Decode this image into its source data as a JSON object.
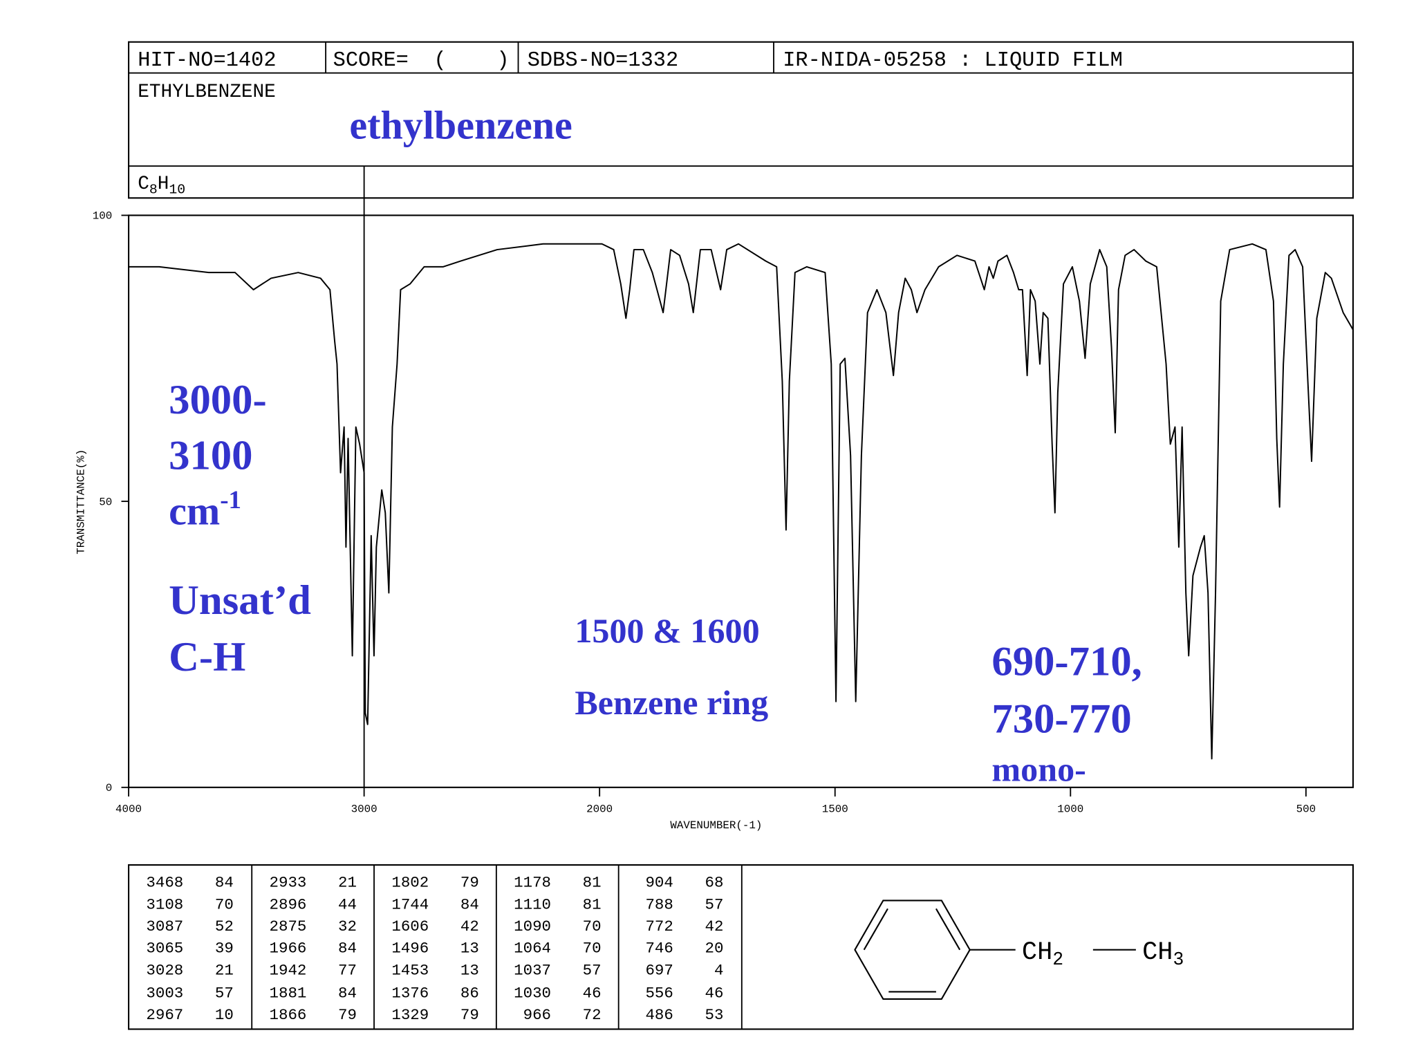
{
  "header": {
    "hit_no": "HIT-NO=1402",
    "score": "SCORE=  (    )",
    "sdbs_no": "SDBS-NO=1332",
    "ir_code": "IR-NIDA-05258 : LIQUID FILM",
    "name": "ETHYLBENZENE",
    "formula": {
      "c": "C",
      "c_count": "8",
      "h": "H",
      "h_count": "10"
    }
  },
  "annotations": {
    "compound": "ethylbenzene",
    "ch_range": [
      "3000-",
      "3100"
    ],
    "ch_unit": {
      "text": "cm",
      "sup": "-1"
    },
    "ch_label": [
      "Unsat’d",
      "C-H"
    ],
    "ring": [
      "1500 & 1600",
      "Benzene ring"
    ],
    "mono": [
      "690-710,",
      "730-770",
      "mono-"
    ]
  },
  "chart_data": {
    "type": "line",
    "x_label": "WAVENUMBER(-1)",
    "y_label": "TRANSMITTANCE(%)",
    "xlim": [
      4000,
      400
    ],
    "xticks": [
      4000,
      3000,
      2000,
      1500,
      1000,
      500
    ],
    "ylim": [
      0,
      100
    ],
    "yticks": [
      0,
      50,
      100
    ],
    "color": "#000000",
    "x": [
      4000,
      3870,
      3660,
      3548,
      3470,
      3395,
      3280,
      3185,
      3145,
      3125,
      3115,
      3100,
      3085,
      3077,
      3068,
      3050,
      3035,
      3019,
      3000,
      2995,
      2985,
      2970,
      2958,
      2948,
      2925,
      2910,
      2895,
      2880,
      2860,
      2845,
      2805,
      2745,
      2665,
      2590,
      2435,
      2240,
      2100,
      1995,
      1970,
      1955,
      1944,
      1936,
      1927,
      1907,
      1888,
      1878,
      1865,
      1849,
      1830,
      1811,
      1801,
      1786,
      1763,
      1743,
      1730,
      1705,
      1647,
      1624,
      1612,
      1604,
      1597,
      1585,
      1560,
      1521,
      1508,
      1498,
      1489,
      1479,
      1467,
      1456,
      1444,
      1431,
      1411,
      1392,
      1376,
      1365,
      1351,
      1338,
      1326,
      1309,
      1280,
      1241,
      1203,
      1183,
      1173,
      1164,
      1154,
      1135,
      1121,
      1110,
      1102,
      1092,
      1085,
      1075,
      1065,
      1058,
      1048,
      1039,
      1033,
      1027,
      1015,
      996,
      981,
      969,
      958,
      938,
      923,
      913,
      905,
      898,
      884,
      865,
      840,
      817,
      797,
      788,
      778,
      770,
      763,
      755,
      749,
      740,
      724,
      716,
      708,
      700,
      692,
      681,
      662,
      614,
      585,
      569,
      562,
      556,
      548,
      536,
      523,
      507,
      496,
      488,
      477,
      459,
      446,
      421,
      400
    ],
    "values": [
      91,
      91,
      90,
      90,
      87,
      89,
      90,
      89,
      87,
      78,
      74,
      55,
      63,
      42,
      61,
      23,
      63,
      60,
      55,
      13,
      11,
      44,
      23,
      42,
      52,
      48,
      34,
      63,
      74,
      87,
      88,
      91,
      91,
      92,
      94,
      95,
      95,
      95,
      94,
      88,
      82,
      87,
      94,
      94,
      90,
      87,
      83,
      94,
      93,
      88,
      83,
      94,
      94,
      87,
      94,
      95,
      92,
      91,
      71,
      45,
      71,
      90,
      91,
      90,
      74,
      15,
      74,
      75,
      58,
      15,
      58,
      83,
      87,
      83,
      72,
      83,
      89,
      87,
      83,
      87,
      91,
      93,
      92,
      87,
      91,
      89,
      92,
      93,
      90,
      87,
      87,
      72,
      87,
      85,
      74,
      83,
      82,
      60,
      48,
      69,
      88,
      91,
      85,
      75,
      88,
      94,
      91,
      77,
      62,
      87,
      93,
      94,
      92,
      91,
      74,
      60,
      63,
      42,
      63,
      34,
      23,
      37,
      42,
      44,
      34,
      5,
      34,
      85,
      94,
      95,
      94,
      85,
      61,
      49,
      74,
      93,
      94,
      91,
      71,
      57,
      82,
      90,
      89,
      83,
      80
    ]
  },
  "peak_table": [
    [
      [
        "3468",
        "84"
      ],
      [
        "3108",
        "70"
      ],
      [
        "3087",
        "52"
      ],
      [
        "3065",
        "39"
      ],
      [
        "3028",
        "21"
      ],
      [
        "3003",
        "57"
      ],
      [
        "2967",
        "10"
      ]
    ],
    [
      [
        "2933",
        "21"
      ],
      [
        "2896",
        "44"
      ],
      [
        "2875",
        "32"
      ],
      [
        "1966",
        "84"
      ],
      [
        "1942",
        "77"
      ],
      [
        "1881",
        "84"
      ],
      [
        "1866",
        "79"
      ]
    ],
    [
      [
        "1802",
        "79"
      ],
      [
        "1744",
        "84"
      ],
      [
        "1606",
        "42"
      ],
      [
        "1496",
        "13"
      ],
      [
        "1453",
        "13"
      ],
      [
        "1376",
        "86"
      ],
      [
        "1329",
        "79"
      ]
    ],
    [
      [
        "1178",
        "81"
      ],
      [
        "1110",
        "81"
      ],
      [
        "1090",
        "70"
      ],
      [
        "1064",
        "70"
      ],
      [
        "1037",
        "57"
      ],
      [
        "1030",
        "46"
      ],
      [
        "966",
        "72"
      ]
    ],
    [
      [
        "904",
        "68"
      ],
      [
        "788",
        "57"
      ],
      [
        "772",
        "42"
      ],
      [
        "746",
        "20"
      ],
      [
        "697",
        "4"
      ],
      [
        "556",
        "46"
      ],
      [
        "486",
        "53"
      ]
    ]
  ],
  "structure": {
    "groups": [
      {
        "main": "CH",
        "sub": "2"
      },
      {
        "main": "CH",
        "sub": "3"
      }
    ]
  }
}
